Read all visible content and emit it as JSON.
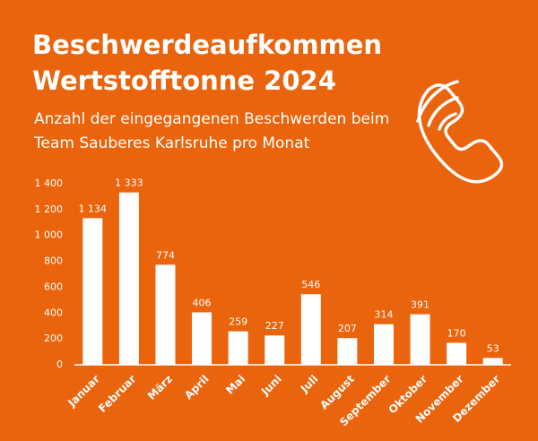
{
  "chart_data": {
    "type": "bar",
    "title": [
      "Beschwerdeaufkommen",
      "Wertstofftonne 2024"
    ],
    "subtitle": [
      "Anzahl der eingegangenen Beschwerden beim",
      "Team Sauberes Karlsruhe pro Monat"
    ],
    "categories": [
      "Januar",
      "Februar",
      "März",
      "April",
      "Mai",
      "Juni",
      "Juli",
      "August",
      "September",
      "Oktober",
      "November",
      "Dezember"
    ],
    "values": [
      1134,
      1333,
      774,
      406,
      259,
      227,
      546,
      207,
      314,
      391,
      170,
      53
    ],
    "value_labels": [
      "1 134",
      "1 333",
      "774",
      "406",
      "259",
      "227",
      "546",
      "207",
      "314",
      "391",
      "170",
      "53"
    ],
    "color": "#ffffff",
    "ylim": [
      0,
      1400
    ],
    "yticks": [
      0,
      200,
      400,
      600,
      800,
      {
        "value": 1000,
        "label": "1 000"
      },
      {
        "value": 1200,
        "label": "1 200"
      },
      {
        "value": 1400,
        "label": "1 400"
      }
    ],
    "grid": false
  }
}
